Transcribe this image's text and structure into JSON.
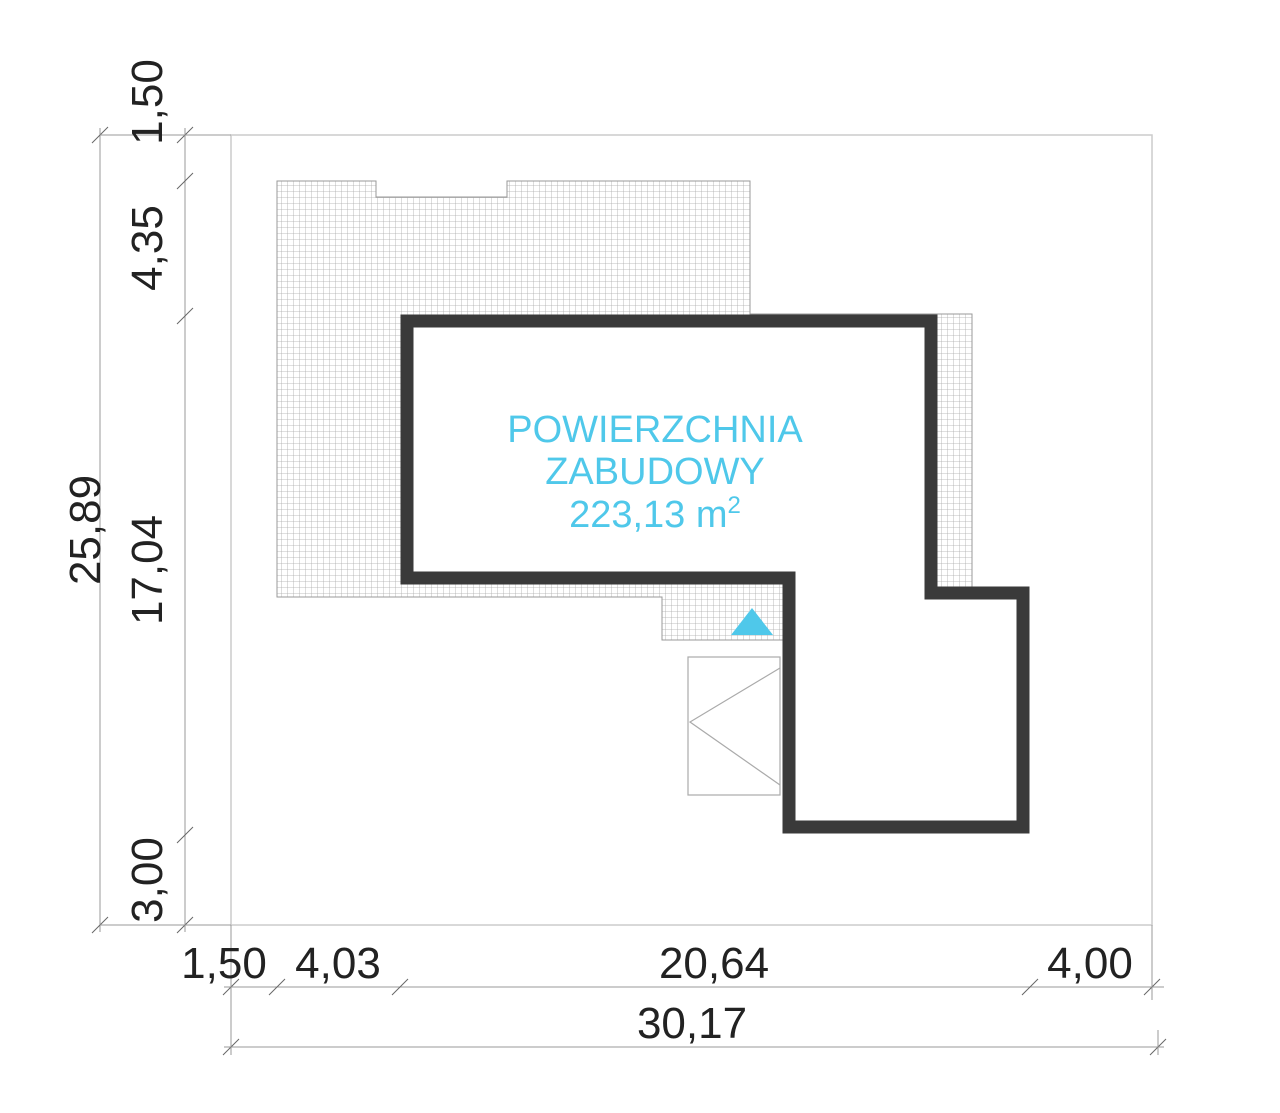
{
  "area_label": {
    "line1": "POWIERZCHNIA",
    "line2": "ZABUDOWY",
    "value": "223,13 m",
    "superscript": "2"
  },
  "dimensions": {
    "vertical": [
      "1,50",
      "4,35",
      "17,04",
      "3,00"
    ],
    "vertical_total": "25,89",
    "horizontal": [
      "1,50",
      "4,03",
      "20,64",
      "4,00"
    ],
    "horizontal_total": "30,17"
  }
}
